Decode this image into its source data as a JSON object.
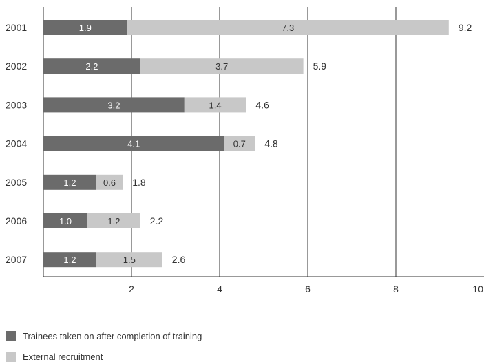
{
  "chart_data": {
    "type": "bar",
    "orientation": "horizontal",
    "stacked": true,
    "categories": [
      "2001",
      "2002",
      "2003",
      "2004",
      "2005",
      "2006",
      "2007"
    ],
    "series": [
      {
        "name": "Trainees taken on after completion of training",
        "values": [
          1.9,
          2.2,
          3.2,
          4.1,
          1.2,
          1.0,
          1.2
        ],
        "labels": [
          "1.9",
          "2.2",
          "3.2",
          "4.1",
          "1.2",
          "1.0",
          "1.2"
        ],
        "color": "#6b6b6b"
      },
      {
        "name": "External recruitment",
        "values": [
          7.3,
          3.7,
          1.4,
          0.7,
          0.6,
          1.2,
          1.5
        ],
        "labels": [
          "7.3",
          "3.7",
          "1.4",
          "0.7",
          "0.6",
          "1.2",
          "1.5"
        ],
        "color": "#c8c8c8"
      }
    ],
    "totals": [
      9.2,
      5.9,
      4.6,
      4.8,
      1.8,
      2.2,
      2.6
    ],
    "total_labels": [
      "9.2",
      "5.9",
      "4.6",
      "4.8",
      "1.8",
      "2.2",
      "2.6"
    ],
    "xlim": [
      0,
      10
    ],
    "xticks": [
      2,
      4,
      6,
      8,
      10
    ],
    "xtick_labels": [
      "2",
      "4",
      "6",
      "8",
      "10"
    ],
    "grid": "vertical",
    "legend_position": "bottom-left"
  }
}
